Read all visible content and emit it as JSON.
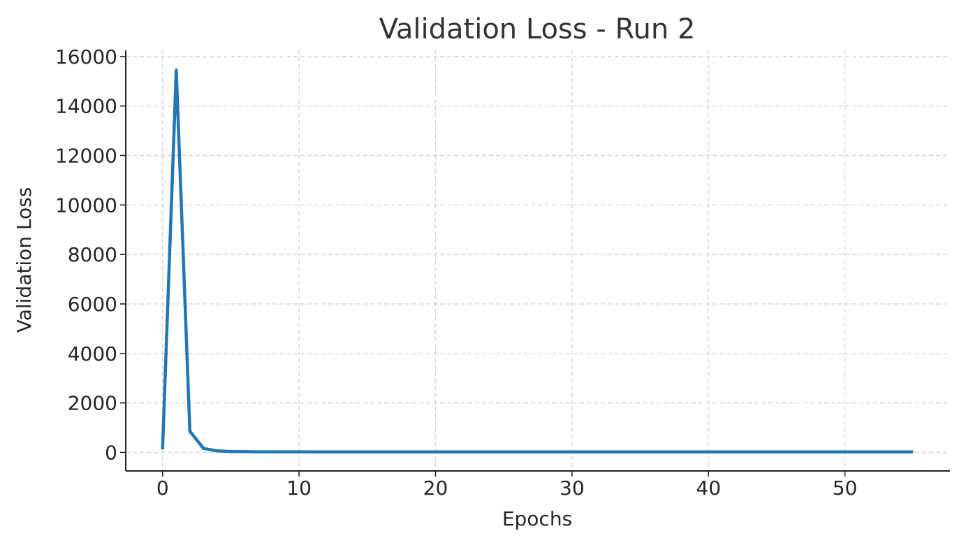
{
  "chart_data": {
    "type": "line",
    "title": "Validation Loss - Run 2",
    "xlabel": "Epochs",
    "ylabel": "Validation Loss",
    "xlim": [
      -2.7,
      57.7
    ],
    "ylim": [
      -750,
      16250
    ],
    "xticks": [
      0,
      10,
      20,
      30,
      40,
      50
    ],
    "yticks": [
      0,
      2000,
      4000,
      6000,
      8000,
      10000,
      12000,
      14000,
      16000
    ],
    "grid": true,
    "series": [
      {
        "color": "#1f77b4",
        "x": [
          0,
          1,
          2,
          3,
          4,
          5,
          6,
          7,
          8,
          9,
          10,
          11,
          12,
          13,
          14,
          15,
          16,
          17,
          18,
          19,
          20,
          21,
          22,
          23,
          24,
          25,
          26,
          27,
          28,
          29,
          30,
          31,
          32,
          33,
          34,
          35,
          36,
          37,
          38,
          39,
          40,
          41,
          42,
          43,
          44,
          45,
          46,
          47,
          48,
          49,
          50,
          51,
          52,
          53,
          54,
          55
        ],
        "y": [
          120,
          15450,
          850,
          160,
          60,
          35,
          28,
          25,
          24,
          23,
          23,
          22,
          22,
          22,
          21,
          21,
          21,
          21,
          21,
          20,
          20,
          20,
          20,
          20,
          20,
          20,
          20,
          20,
          20,
          20,
          20,
          20,
          20,
          20,
          20,
          20,
          20,
          20,
          20,
          20,
          20,
          20,
          20,
          20,
          20,
          20,
          20,
          20,
          20,
          20,
          20,
          20,
          20,
          20,
          20,
          20
        ]
      }
    ]
  }
}
